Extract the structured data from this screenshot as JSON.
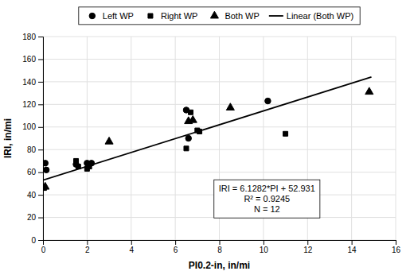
{
  "chart_data": {
    "type": "scatter",
    "xlabel": "PI0.2-in, in/mi",
    "ylabel": "IRI, in/mi",
    "annotations": [
      "IRI = 6.1282*PI + 52.931",
      "R² = 0.9245",
      "N = 12"
    ],
    "series": [
      {
        "name": "Left WP",
        "type": "scatter",
        "marker": "circle",
        "color": "black",
        "x": [
          0.1,
          0.15,
          1.5,
          2.0,
          2.1,
          2.2,
          6.5,
          6.6,
          10.2
        ],
        "values": [
          68,
          62,
          67,
          68,
          67,
          68,
          115,
          90,
          123
        ]
      },
      {
        "name": "Right WP",
        "type": "scatter",
        "marker": "square",
        "color": "black",
        "x": [
          0.05,
          1.5,
          1.6,
          2.0,
          2.1,
          6.5,
          6.7,
          7.0,
          7.1,
          11.0
        ],
        "values": [
          46,
          70,
          65,
          63,
          65,
          81,
          113,
          97,
          96,
          94
        ]
      },
      {
        "name": "Both WP",
        "type": "scatter",
        "marker": "triangle",
        "color": "black",
        "x": [
          0.1,
          3.0,
          6.6,
          6.8,
          8.5,
          14.8
        ],
        "values": [
          47,
          87,
          105,
          106,
          117,
          131
        ]
      },
      {
        "name": "Linear (Both WP)",
        "type": "line",
        "line_style": "solid",
        "color": "black",
        "x": [
          0,
          14.9
        ],
        "values": [
          52.931,
          144.24118
        ]
      }
    ],
    "xlim": [
      0,
      16
    ],
    "ylim": [
      0,
      180
    ],
    "xticks": [
      0,
      2,
      4,
      6,
      8,
      10,
      12,
      14,
      16
    ],
    "yticks": [
      0,
      20,
      40,
      60,
      80,
      100,
      120,
      140,
      160,
      180
    ],
    "grid": true,
    "legend": "top"
  }
}
